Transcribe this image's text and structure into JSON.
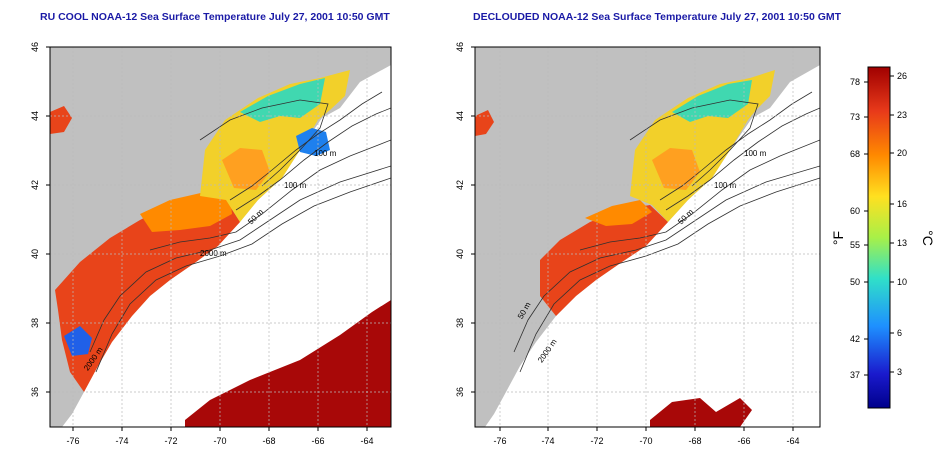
{
  "panels": [
    {
      "title": "RU COOL NOAA-12 Sea Surface Temperature July 27, 2001 10:50 GMT",
      "x_ticks": [
        "-76",
        "-74",
        "-72",
        "-70",
        "-68",
        "-66",
        "-64"
      ],
      "y_ticks": [
        "46",
        "44",
        "42",
        "40",
        "38",
        "36"
      ],
      "contour_labels": [
        "100 m",
        "100 m",
        "50 m",
        "2000 m",
        "2000 m"
      ]
    },
    {
      "title": "DECLOUDED NOAA-12 Sea Surface Temperature July 27, 2001 10:50 GMT",
      "x_ticks": [
        "-76",
        "-74",
        "-72",
        "-70",
        "-68",
        "-66",
        "-64"
      ],
      "y_ticks": [
        "46",
        "44",
        "42",
        "40",
        "38",
        "36"
      ],
      "contour_labels": [
        "100 m",
        "100 m",
        "50 m",
        "50 m",
        "2000 m"
      ]
    }
  ],
  "colorbar": {
    "fahrenheit_label": "°F",
    "celsius_label": "°C",
    "fahrenheit_ticks": [
      "78",
      "73",
      "68",
      "60",
      "55",
      "50",
      "42",
      "37"
    ],
    "celsius_ticks": [
      "26",
      "23",
      "20",
      "16",
      "13",
      "10",
      "6",
      "3"
    ],
    "colors": [
      "#a00000",
      "#e83a1a",
      "#ff8a00",
      "#ffe020",
      "#a8f048",
      "#30e0c8",
      "#1e90ff",
      "#1a1acd",
      "#00008b"
    ]
  },
  "colors": {
    "land": "#c0c0c0",
    "title": "#1a1aa6",
    "grid": "#bbbbbb"
  }
}
